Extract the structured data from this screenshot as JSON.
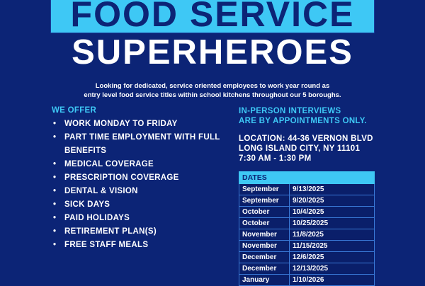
{
  "header": {
    "line1": "FOOD SERVICE",
    "line2": "SUPERHEROES"
  },
  "intro": [
    "Looking for dedicated, service oriented employees to work year round as",
    "entry level food service titles within school kitchens throughout our 5 boroughs."
  ],
  "offer": {
    "heading": "WE OFFER",
    "bullet": "•",
    "items": [
      "WORK MONDAY TO FRIDAY",
      "PART TIME EMPLOYMENT WITH FULL BENEFITS",
      "MEDICAL COVERAGE",
      "PRESCRIPTION COVERAGE",
      "DENTAL & VISION",
      "SICK DAYS",
      "PAID HOLIDAYS",
      "RETIREMENT PLAN(S)",
      "FREE STAFF MEALS"
    ]
  },
  "interviews": {
    "heading": [
      "IN-PERSON INTERVIEWS",
      "ARE BY APPOINTMENTS ONLY."
    ],
    "location": [
      "LOCATION: 44-36 VERNON BLVD",
      "LONG ISLAND CITY,  NY 11101",
      "7:30 AM - 1:30 PM"
    ]
  },
  "dates": {
    "heading": "DATES",
    "rows": [
      [
        "September",
        "9/13/2025"
      ],
      [
        "September",
        "9/20/2025"
      ],
      [
        "October",
        "10/4/2025"
      ],
      [
        "October",
        "10/25/2025"
      ],
      [
        "November",
        "11/8/2025"
      ],
      [
        "November",
        "11/15/2025"
      ],
      [
        "December",
        "12/6/2025"
      ],
      [
        "December",
        "12/13/2025"
      ],
      [
        "January",
        "1/10/2026"
      ]
    ]
  },
  "colors": {
    "background": "#0c2476",
    "accent": "#3ec8f5",
    "text": "#ffffff"
  }
}
